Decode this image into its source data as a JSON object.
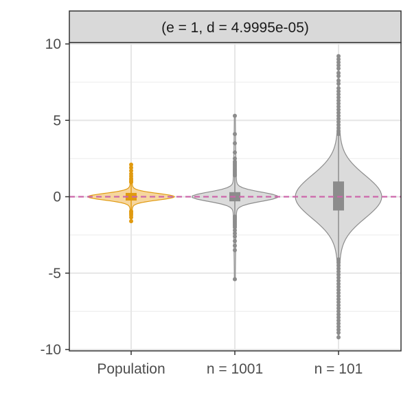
{
  "chart_data": {
    "type": "violin",
    "facet_label": "(e = 1, d = 4.9995e-05)",
    "categories": [
      "Population",
      "n = 1001",
      "n = 101"
    ],
    "ylim": [
      -10,
      10
    ],
    "yticks": [
      -10,
      -5,
      0,
      5,
      10
    ],
    "reference_line": 0,
    "grid": true,
    "colors": {
      "population_fill": "#f6d49a",
      "population_line": "#e09a10",
      "sample_fill": "#d9d9d9",
      "sample_line": "#8c8c8c",
      "box": "#8c8c8c",
      "reference": "#cc66aa"
    },
    "series": [
      {
        "category": "Population",
        "q1": -0.25,
        "median": 0,
        "q3": 0.25,
        "whisker_low": -0.9,
        "whisker_high": 0.9,
        "violin_ymin": -1.6,
        "violin_ymax": 2.1,
        "violin_max_halfwidth": 0.45,
        "outliers": [
          2.1,
          1.9,
          1.7,
          1.5,
          1.35,
          1.2,
          1.1,
          1.0,
          0.95,
          -0.95,
          -1.0,
          -1.1,
          -1.2,
          -1.35,
          -1.6
        ]
      },
      {
        "category": "n = 1001",
        "q1": -0.3,
        "median": 0,
        "q3": 0.3,
        "whisker_low": -1.2,
        "whisker_high": 1.3,
        "violin_ymin": -5.4,
        "violin_ymax": 5.3,
        "violin_max_halfwidth": 0.45,
        "outliers": [
          5.3,
          4.1,
          3.5,
          2.9,
          2.5,
          2.3,
          2.2,
          2.1,
          2.0,
          1.9,
          1.8,
          1.7,
          1.6,
          1.5,
          1.4,
          -1.3,
          -1.4,
          -1.5,
          -1.6,
          -1.7,
          -1.8,
          -1.9,
          -2.0,
          -2.2,
          -2.4,
          -2.6,
          -2.9,
          -3.2,
          -3.5,
          -5.4
        ]
      },
      {
        "category": "n = 101",
        "q1": -0.9,
        "median": 0,
        "q3": 1.0,
        "whisker_low": -4.0,
        "whisker_high": 4.0,
        "violin_ymin": -9.2,
        "violin_ymax": 9.2,
        "violin_max_halfwidth": 0.45,
        "outliers": [
          9.2,
          9.0,
          8.8,
          8.6,
          8.4,
          8.1,
          7.9,
          7.6,
          7.4,
          7.1,
          6.9,
          6.7,
          6.5,
          6.3,
          6.1,
          5.9,
          5.7,
          5.5,
          5.3,
          5.1,
          4.9,
          4.7,
          4.5,
          4.3,
          4.1,
          -4.1,
          -4.3,
          -4.5,
          -4.7,
          -4.9,
          -5.1,
          -5.3,
          -5.5,
          -5.7,
          -5.9,
          -6.1,
          -6.3,
          -6.5,
          -6.7,
          -6.9,
          -7.1,
          -7.3,
          -7.5,
          -7.7,
          -7.9,
          -8.1,
          -8.3,
          -8.5,
          -8.7,
          -8.9,
          -9.2
        ]
      }
    ]
  }
}
